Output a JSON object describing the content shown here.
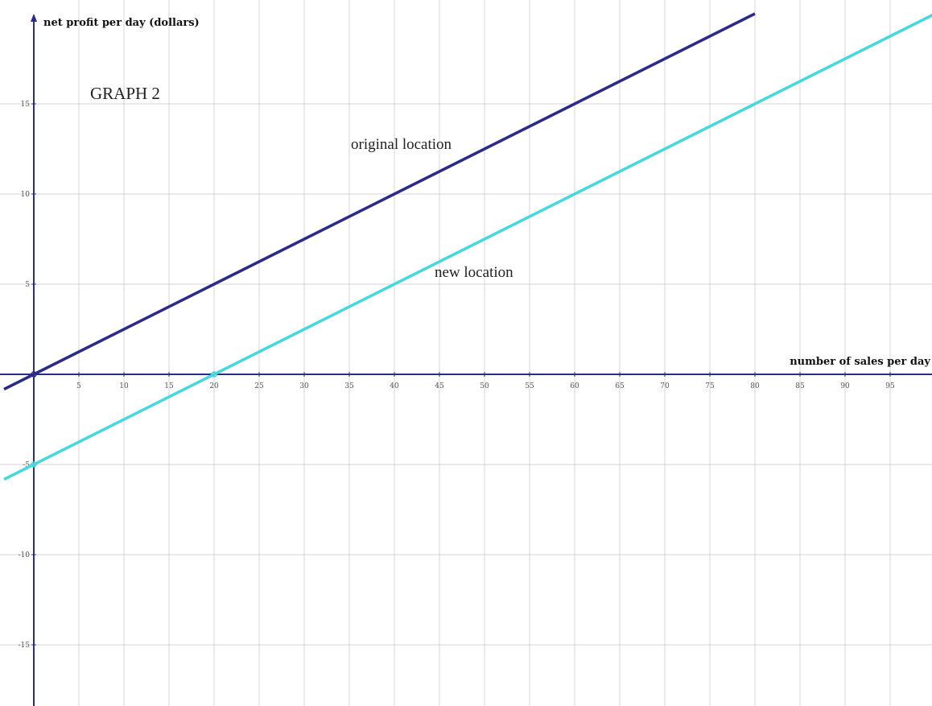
{
  "chart_data": {
    "type": "line",
    "title": "GRAPH 2",
    "xlabel": "number of sales per day",
    "ylabel": "net profit per day (dollars)",
    "xlim": [
      -3.3,
      100
    ],
    "ylim": [
      -18.5,
      20
    ],
    "x_ticks": [
      5,
      10,
      15,
      20,
      25,
      30,
      35,
      40,
      45,
      50,
      55,
      60,
      65,
      70,
      75,
      80,
      85,
      90,
      95
    ],
    "y_ticks": [
      -15,
      -10,
      -5,
      5,
      10,
      15
    ],
    "grid": true,
    "series": [
      {
        "name": "original location",
        "color": "#2b2b8c",
        "x": [
          -3.3,
          0,
          20,
          40,
          60,
          80
        ],
        "y": [
          -0.825,
          0,
          5,
          10,
          15,
          20
        ]
      },
      {
        "name": "new location",
        "color": "#48d8dc",
        "x": [
          -3.3,
          0,
          20,
          40,
          60,
          80,
          100
        ],
        "y": [
          -5.825,
          -5,
          0,
          5,
          10,
          15,
          20
        ]
      }
    ]
  }
}
